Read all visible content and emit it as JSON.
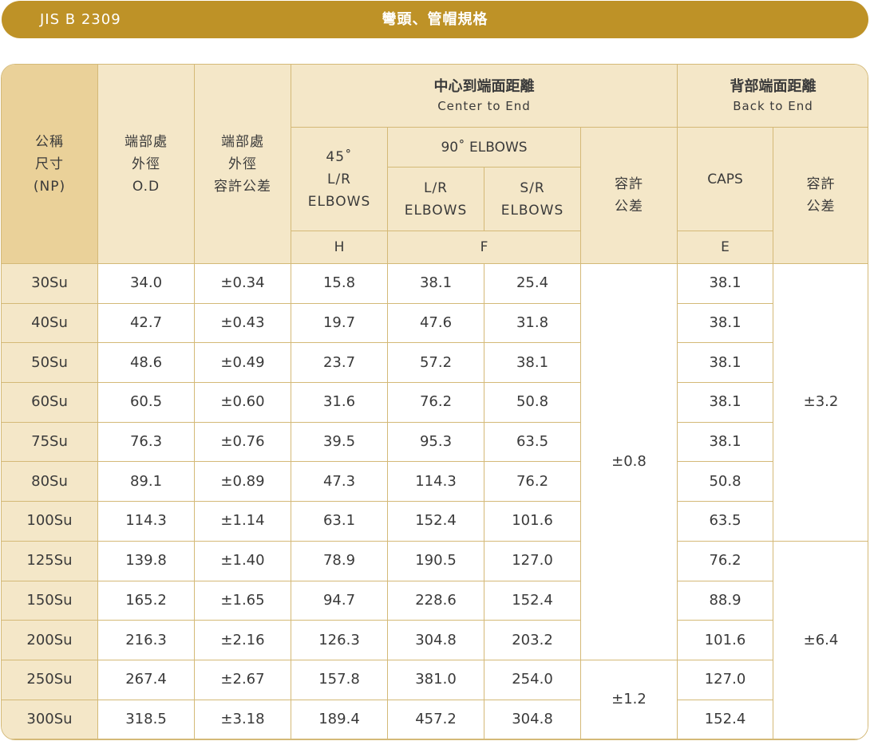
{
  "banner": {
    "standard": "JIS B 2309",
    "title": "彎頭、管帽規格"
  },
  "headers": {
    "np": [
      "公稱",
      "尺寸",
      "(NP)"
    ],
    "od": [
      "端部處",
      "外徑",
      "O.D"
    ],
    "od_tol": [
      "端部處",
      "外徑",
      "容許公差"
    ],
    "center_to_end": {
      "zh": "中心到端面距離",
      "en": "Center to End"
    },
    "back_to_end": {
      "zh": "背部端面距離",
      "en": "Back to End"
    },
    "lr45": [
      "45˚",
      "L/R",
      "ELBOWS"
    ],
    "elbows90": "90˚ ELBOWS",
    "lr90": [
      "L/R",
      "ELBOWS"
    ],
    "sr90": [
      "S/R",
      "ELBOWS"
    ],
    "tol_cte": [
      "容許",
      "公差"
    ],
    "caps": "CAPS",
    "tol_bte": [
      "容許",
      "公差"
    ],
    "h": "H",
    "f": "F",
    "e": "E"
  },
  "rows": [
    {
      "np": "30Su",
      "od": "34.0",
      "tol": "±0.34",
      "h": "15.8",
      "lr": "38.1",
      "sr": "25.4",
      "e": "38.1"
    },
    {
      "np": "40Su",
      "od": "42.7",
      "tol": "±0.43",
      "h": "19.7",
      "lr": "47.6",
      "sr": "31.8",
      "e": "38.1"
    },
    {
      "np": "50Su",
      "od": "48.6",
      "tol": "±0.49",
      "h": "23.7",
      "lr": "57.2",
      "sr": "38.1",
      "e": "38.1"
    },
    {
      "np": "60Su",
      "od": "60.5",
      "tol": "±0.60",
      "h": "31.6",
      "lr": "76.2",
      "sr": "50.8",
      "e": "38.1"
    },
    {
      "np": "75Su",
      "od": "76.3",
      "tol": "±0.76",
      "h": "39.5",
      "lr": "95.3",
      "sr": "63.5",
      "e": "38.1"
    },
    {
      "np": "80Su",
      "od": "89.1",
      "tol": "±0.89",
      "h": "47.3",
      "lr": "114.3",
      "sr": "76.2",
      "e": "50.8"
    },
    {
      "np": "100Su",
      "od": "114.3",
      "tol": "±1.14",
      "h": "63.1",
      "lr": "152.4",
      "sr": "101.6",
      "e": "63.5"
    },
    {
      "np": "125Su",
      "od": "139.8",
      "tol": "±1.40",
      "h": "78.9",
      "lr": "190.5",
      "sr": "127.0",
      "e": "76.2"
    },
    {
      "np": "150Su",
      "od": "165.2",
      "tol": "±1.65",
      "h": "94.7",
      "lr": "228.6",
      "sr": "152.4",
      "e": "88.9"
    },
    {
      "np": "200Su",
      "od": "216.3",
      "tol": "±2.16",
      "h": "126.3",
      "lr": "304.8",
      "sr": "203.2",
      "e": "101.6"
    },
    {
      "np": "250Su",
      "od": "267.4",
      "tol": "±2.67",
      "h": "157.8",
      "lr": "381.0",
      "sr": "254.0",
      "e": "127.0"
    },
    {
      "np": "300Su",
      "od": "318.5",
      "tol": "±3.18",
      "h": "189.4",
      "lr": "457.2",
      "sr": "304.8",
      "e": "152.4"
    }
  ],
  "merged": {
    "tol_cte_a": "±0.8",
    "tol_cte_b": "±1.2",
    "tol_bte_a": "±3.2",
    "tol_bte_b": "±6.4"
  }
}
